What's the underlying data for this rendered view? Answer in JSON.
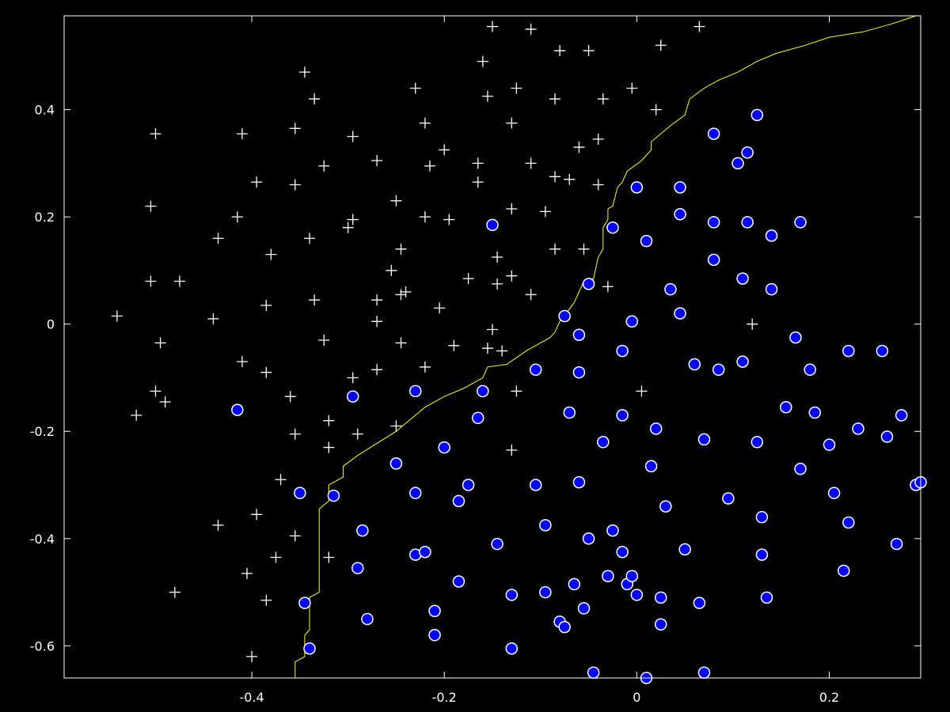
{
  "chart_data": {
    "type": "scatter",
    "title": "",
    "xlabel": "",
    "ylabel": "",
    "xlim": [
      -0.595,
      0.295
    ],
    "ylim": [
      -0.66,
      0.575
    ],
    "x_ticks": [
      -0.4,
      -0.2,
      0,
      0.2
    ],
    "x_tick_labels": [
      "-0.4",
      "-0.2",
      "0",
      "0.2"
    ],
    "y_ticks": [
      -0.6,
      -0.4,
      -0.2,
      0,
      0.2,
      0.4
    ],
    "y_tick_labels": [
      "-0.6",
      "-0.4",
      "-0.2",
      "0",
      "0.2",
      "0.4"
    ],
    "grid": false,
    "legend": "none",
    "colors": {
      "background": "#000000",
      "axes": "#ffffff",
      "plus_marker": "#ffffff",
      "circle_fill": "#0000ff",
      "circle_edge": "#ffffff",
      "boundary": "#ffff00"
    },
    "series": [
      {
        "marker": "plus",
        "points": [
          [
            -0.54,
            0.015
          ],
          [
            -0.52,
            -0.17
          ],
          [
            -0.505,
            0.22
          ],
          [
            -0.505,
            0.08
          ],
          [
            -0.5,
            0.355
          ],
          [
            -0.5,
            -0.125
          ],
          [
            -0.495,
            -0.035
          ],
          [
            -0.49,
            -0.145
          ],
          [
            -0.475,
            0.08
          ],
          [
            -0.48,
            -0.5
          ],
          [
            -0.44,
            0.01
          ],
          [
            -0.435,
            0.16
          ],
          [
            -0.435,
            -0.375
          ],
          [
            -0.415,
            0.2
          ],
          [
            -0.41,
            0.355
          ],
          [
            -0.41,
            -0.07
          ],
          [
            -0.405,
            -0.465
          ],
          [
            -0.395,
            0.265
          ],
          [
            -0.395,
            -0.355
          ],
          [
            -0.4,
            -0.62
          ],
          [
            -0.385,
            0.035
          ],
          [
            -0.385,
            -0.09
          ],
          [
            -0.385,
            -0.515
          ],
          [
            -0.38,
            0.13
          ],
          [
            -0.375,
            -0.435
          ],
          [
            -0.37,
            -0.29
          ],
          [
            -0.36,
            -0.135
          ],
          [
            -0.355,
            0.365
          ],
          [
            -0.355,
            0.26
          ],
          [
            -0.355,
            -0.205
          ],
          [
            -0.355,
            -0.395
          ],
          [
            -0.345,
            0.47
          ],
          [
            -0.34,
            0.16
          ],
          [
            -0.335,
            0.42
          ],
          [
            -0.335,
            0.045
          ],
          [
            -0.325,
            0.295
          ],
          [
            -0.325,
            -0.03
          ],
          [
            -0.32,
            -0.18
          ],
          [
            -0.32,
            -0.23
          ],
          [
            -0.32,
            -0.435
          ],
          [
            -0.295,
            0.35
          ],
          [
            -0.295,
            0.195
          ],
          [
            -0.3,
            0.18
          ],
          [
            -0.295,
            -0.1
          ],
          [
            -0.29,
            -0.205
          ],
          [
            -0.27,
            0.305
          ],
          [
            -0.27,
            0.045
          ],
          [
            -0.27,
            0.005
          ],
          [
            -0.27,
            -0.085
          ],
          [
            -0.255,
            0.1
          ],
          [
            -0.25,
            0.23
          ],
          [
            -0.245,
            0.14
          ],
          [
            -0.245,
            0.055
          ],
          [
            -0.24,
            0.06
          ],
          [
            -0.245,
            -0.035
          ],
          [
            -0.25,
            -0.19
          ],
          [
            -0.23,
            0.44
          ],
          [
            -0.22,
            0.375
          ],
          [
            -0.215,
            0.295
          ],
          [
            -0.22,
            0.2
          ],
          [
            -0.22,
            -0.08
          ],
          [
            -0.2,
            0.325
          ],
          [
            -0.195,
            0.195
          ],
          [
            -0.205,
            0.03
          ],
          [
            -0.19,
            -0.04
          ],
          [
            -0.175,
            0.085
          ],
          [
            -0.165,
            0.3
          ],
          [
            -0.165,
            0.265
          ],
          [
            -0.16,
            0.49
          ],
          [
            -0.155,
            0.425
          ],
          [
            -0.15,
            0.555
          ],
          [
            -0.145,
            0.125
          ],
          [
            -0.145,
            0.075
          ],
          [
            -0.15,
            -0.01
          ],
          [
            -0.155,
            -0.045
          ],
          [
            -0.14,
            -0.05
          ],
          [
            -0.125,
            0.44
          ],
          [
            -0.13,
            0.375
          ],
          [
            -0.13,
            0.215
          ],
          [
            -0.13,
            0.09
          ],
          [
            -0.125,
            -0.125
          ],
          [
            -0.13,
            -0.235
          ],
          [
            -0.11,
            0.55
          ],
          [
            -0.11,
            0.3
          ],
          [
            -0.11,
            0.055
          ],
          [
            -0.095,
            0.21
          ],
          [
            -0.08,
            0.51
          ],
          [
            -0.085,
            0.42
          ],
          [
            -0.085,
            0.275
          ],
          [
            -0.085,
            0.14
          ],
          [
            -0.07,
            0.27
          ],
          [
            -0.06,
            0.33
          ],
          [
            -0.05,
            0.51
          ],
          [
            -0.035,
            0.42
          ],
          [
            -0.04,
            0.345
          ],
          [
            -0.04,
            0.26
          ],
          [
            -0.055,
            0.14
          ],
          [
            -0.03,
            0.07
          ],
          [
            -0.005,
            0.44
          ],
          [
            0.005,
            -0.125
          ],
          [
            0.02,
            0.4
          ],
          [
            0.025,
            0.52
          ],
          [
            0.065,
            0.555
          ],
          [
            0.12,
            0.0
          ]
        ]
      },
      {
        "marker": "circle",
        "points": [
          [
            -0.415,
            -0.16
          ],
          [
            -0.35,
            -0.315
          ],
          [
            -0.345,
            -0.52
          ],
          [
            -0.34,
            -0.605
          ],
          [
            -0.315,
            -0.32
          ],
          [
            -0.295,
            -0.135
          ],
          [
            -0.29,
            -0.455
          ],
          [
            -0.285,
            -0.385
          ],
          [
            -0.28,
            -0.55
          ],
          [
            -0.25,
            -0.26
          ],
          [
            -0.23,
            -0.125
          ],
          [
            -0.23,
            -0.315
          ],
          [
            -0.23,
            -0.43
          ],
          [
            -0.22,
            -0.425
          ],
          [
            -0.21,
            -0.535
          ],
          [
            -0.21,
            -0.58
          ],
          [
            -0.2,
            -0.23
          ],
          [
            -0.185,
            -0.33
          ],
          [
            -0.185,
            -0.48
          ],
          [
            -0.175,
            -0.3
          ],
          [
            -0.165,
            -0.175
          ],
          [
            -0.16,
            -0.125
          ],
          [
            -0.15,
            0.185
          ],
          [
            -0.145,
            -0.41
          ],
          [
            -0.13,
            -0.505
          ],
          [
            -0.13,
            -0.605
          ],
          [
            -0.105,
            -0.085
          ],
          [
            -0.105,
            -0.3
          ],
          [
            -0.095,
            -0.375
          ],
          [
            -0.095,
            -0.5
          ],
          [
            -0.075,
            0.015
          ],
          [
            -0.08,
            -0.555
          ],
          [
            -0.075,
            -0.565
          ],
          [
            -0.07,
            -0.165
          ],
          [
            -0.065,
            -0.485
          ],
          [
            -0.06,
            -0.09
          ],
          [
            -0.06,
            -0.295
          ],
          [
            -0.06,
            -0.02
          ],
          [
            -0.05,
            0.075
          ],
          [
            -0.05,
            -0.4
          ],
          [
            -0.055,
            -0.53
          ],
          [
            -0.045,
            -0.65
          ],
          [
            -0.035,
            -0.22
          ],
          [
            -0.03,
            -0.47
          ],
          [
            -0.025,
            0.18
          ],
          [
            -0.025,
            -0.385
          ],
          [
            -0.015,
            -0.425
          ],
          [
            -0.015,
            -0.17
          ],
          [
            -0.015,
            -0.05
          ],
          [
            -0.01,
            -0.485
          ],
          [
            -0.005,
            -0.47
          ],
          [
            -0.005,
            0.005
          ],
          [
            0.0,
            0.255
          ],
          [
            0.0,
            -0.505
          ],
          [
            0.01,
            0.155
          ],
          [
            0.015,
            -0.265
          ],
          [
            0.02,
            -0.195
          ],
          [
            0.025,
            -0.51
          ],
          [
            0.025,
            -0.56
          ],
          [
            0.03,
            -0.34
          ],
          [
            0.035,
            0.065
          ],
          [
            0.045,
            0.205
          ],
          [
            0.045,
            0.02
          ],
          [
            0.045,
            0.255
          ],
          [
            0.05,
            -0.42
          ],
          [
            0.06,
            -0.075
          ],
          [
            0.065,
            -0.52
          ],
          [
            0.07,
            -0.215
          ],
          [
            0.07,
            -0.65
          ],
          [
            0.08,
            0.355
          ],
          [
            0.08,
            0.19
          ],
          [
            0.08,
            0.12
          ],
          [
            0.085,
            -0.085
          ],
          [
            0.095,
            -0.325
          ],
          [
            0.105,
            0.3
          ],
          [
            0.11,
            0.085
          ],
          [
            0.11,
            -0.07
          ],
          [
            0.115,
            0.32
          ],
          [
            0.115,
            0.19
          ],
          [
            0.125,
            0.39
          ],
          [
            0.125,
            -0.22
          ],
          [
            0.13,
            -0.36
          ],
          [
            0.13,
            -0.43
          ],
          [
            0.135,
            -0.51
          ],
          [
            0.14,
            0.065
          ],
          [
            0.14,
            0.165
          ],
          [
            0.155,
            -0.155
          ],
          [
            0.165,
            -0.025
          ],
          [
            0.17,
            0.19
          ],
          [
            0.17,
            -0.27
          ],
          [
            0.18,
            -0.085
          ],
          [
            0.185,
            -0.165
          ],
          [
            0.2,
            -0.225
          ],
          [
            0.205,
            -0.315
          ],
          [
            0.215,
            -0.46
          ],
          [
            0.22,
            -0.05
          ],
          [
            0.22,
            -0.37
          ],
          [
            0.23,
            -0.195
          ],
          [
            0.255,
            -0.05
          ],
          [
            0.26,
            -0.21
          ],
          [
            0.27,
            -0.41
          ],
          [
            0.275,
            -0.17
          ],
          [
            0.29,
            -0.3
          ],
          [
            0.295,
            -0.295
          ],
          [
            0.01,
            -0.66
          ]
        ]
      }
    ],
    "decision_boundary": [
      [
        -0.355,
        -0.66
      ],
      [
        -0.355,
        -0.63
      ],
      [
        -0.345,
        -0.62
      ],
      [
        -0.345,
        -0.58
      ],
      [
        -0.34,
        -0.57
      ],
      [
        -0.34,
        -0.51
      ],
      [
        -0.33,
        -0.5
      ],
      [
        -0.33,
        -0.345
      ],
      [
        -0.32,
        -0.33
      ],
      [
        -0.32,
        -0.3
      ],
      [
        -0.305,
        -0.285
      ],
      [
        -0.305,
        -0.265
      ],
      [
        -0.29,
        -0.245
      ],
      [
        -0.25,
        -0.2
      ],
      [
        -0.22,
        -0.155
      ],
      [
        -0.2,
        -0.135
      ],
      [
        -0.18,
        -0.12
      ],
      [
        -0.16,
        -0.1
      ],
      [
        -0.155,
        -0.08
      ],
      [
        -0.135,
        -0.075
      ],
      [
        -0.115,
        -0.05
      ],
      [
        -0.1,
        -0.035
      ],
      [
        -0.09,
        -0.025
      ],
      [
        -0.085,
        -0.015
      ],
      [
        -0.08,
        0.005
      ],
      [
        -0.065,
        0.04
      ],
      [
        -0.06,
        0.06
      ],
      [
        -0.055,
        0.08
      ],
      [
        -0.045,
        0.085
      ],
      [
        -0.04,
        0.125
      ],
      [
        -0.035,
        0.14
      ],
      [
        -0.035,
        0.18
      ],
      [
        -0.03,
        0.195
      ],
      [
        -0.03,
        0.215
      ],
      [
        -0.025,
        0.22
      ],
      [
        -0.02,
        0.255
      ],
      [
        -0.015,
        0.265
      ],
      [
        -0.01,
        0.285
      ],
      [
        0.005,
        0.305
      ],
      [
        0.015,
        0.325
      ],
      [
        0.015,
        0.34
      ],
      [
        0.035,
        0.37
      ],
      [
        0.05,
        0.39
      ],
      [
        0.055,
        0.42
      ],
      [
        0.07,
        0.44
      ],
      [
        0.085,
        0.455
      ],
      [
        0.105,
        0.47
      ],
      [
        0.125,
        0.49
      ],
      [
        0.145,
        0.505
      ],
      [
        0.175,
        0.52
      ],
      [
        0.2,
        0.535
      ],
      [
        0.235,
        0.545
      ],
      [
        0.265,
        0.56
      ],
      [
        0.29,
        0.575
      ]
    ]
  }
}
